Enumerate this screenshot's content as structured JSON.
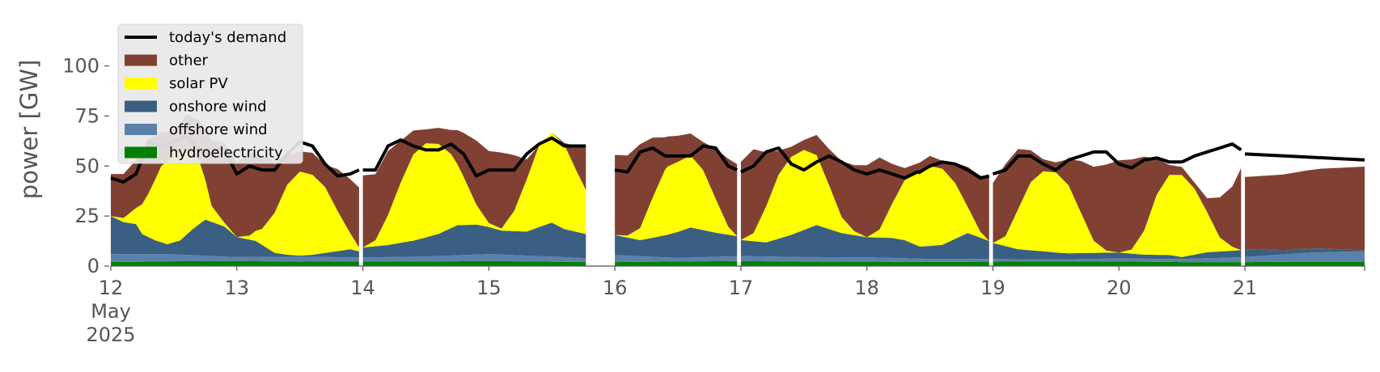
{
  "chart_data": {
    "type": "area",
    "ylabel": "power [GW]",
    "ylim": [
      0,
      120
    ],
    "yticks": [
      0,
      25,
      50,
      75,
      100
    ],
    "xlim": [
      0,
      9.95
    ],
    "x_tick_labels": [
      "12\nMay\n2025",
      "13",
      "14",
      "15",
      "16",
      "17",
      "18",
      "19",
      "20",
      "21"
    ],
    "legend_position": "top-left",
    "grid": false,
    "day_segments": [
      [
        0.0,
        1.97
      ],
      [
        2.0,
        3.77
      ],
      [
        4.0,
        4.42
      ],
      [
        4.42,
        4.97
      ],
      [
        5.0,
        6.42
      ],
      [
        6.42,
        6.97
      ],
      [
        7.0,
        8.5
      ],
      [
        8.5,
        8.97
      ],
      [
        9.0,
        9.95
      ]
    ],
    "series": [
      {
        "name": "hydroelectricity",
        "color": "#008000",
        "x": [
          0,
          0.5,
          1,
          1.5,
          2,
          2.5,
          3,
          3.5,
          3.77,
          4,
          4.5,
          5,
          5.5,
          6,
          6.5,
          7,
          7.5,
          8,
          8.5,
          9,
          9.5,
          9.95
        ],
        "values": [
          2,
          2.4,
          2.5,
          2.2,
          2.3,
          2.3,
          2.5,
          2.2,
          2,
          2,
          2.3,
          2.5,
          2.2,
          2.2,
          2.1,
          2.2,
          2.3,
          2.3,
          2,
          2,
          2.2,
          2.2
        ]
      },
      {
        "name": "offshore wind",
        "color": "#5c81a8",
        "x": [
          0,
          0.5,
          1,
          1.5,
          2,
          2.5,
          3,
          3.5,
          3.77,
          4,
          4.5,
          5,
          5.5,
          6,
          6.5,
          7,
          7.5,
          8,
          8.5,
          9,
          9.5,
          9.95
        ],
        "values": [
          4,
          3.5,
          2,
          2.5,
          2,
          2.5,
          3.5,
          2.5,
          2,
          3.5,
          1.8,
          2.5,
          2.3,
          2.2,
          1.5,
          1.3,
          1,
          1.5,
          1.5,
          2.5,
          4.5,
          5.2
        ]
      },
      {
        "name": "onshore wind",
        "color": "#3a5f82",
        "x": [
          0,
          0.1,
          0.2,
          0.25,
          0.35,
          0.45,
          0.55,
          0.65,
          0.75,
          0.9,
          1.0,
          1.15,
          1.3,
          1.4,
          1.5,
          1.6,
          1.7,
          1.8,
          1.9,
          1.97,
          2.0,
          2.2,
          2.4,
          2.6,
          2.75,
          2.9,
          3.1,
          3.3,
          3.5,
          3.6,
          3.77,
          4.0,
          4.2,
          4.4,
          4.6,
          4.8,
          4.97,
          5.0,
          5.2,
          5.4,
          5.6,
          5.8,
          6.0,
          6.2,
          6.3,
          6.42,
          6.6,
          6.8,
          6.97,
          7.0,
          7.2,
          7.4,
          7.6,
          7.8,
          8.0,
          8.2,
          8.4,
          8.5,
          8.7,
          8.97,
          9.0,
          9.3,
          9.6,
          9.95
        ],
        "values": [
          19,
          16,
          15,
          10,
          7,
          5,
          7,
          13,
          18,
          15,
          10,
          8,
          2,
          1,
          0.5,
          1,
          2,
          3,
          4,
          3,
          5,
          6,
          8,
          11,
          15,
          15,
          12,
          12,
          17,
          14,
          12,
          10,
          8,
          11,
          15,
          12,
          10,
          8,
          7,
          11,
          16,
          12,
          10,
          10,
          9,
          6,
          7,
          13,
          9,
          8,
          5,
          4,
          3,
          3,
          3,
          2,
          2,
          1,
          3,
          3.5,
          4,
          2,
          2,
          0.3
        ]
      },
      {
        "name": "solar PV",
        "color": "#ffff00",
        "x": [
          0,
          0.1,
          0.2,
          0.3,
          0.4,
          0.5,
          0.6,
          0.7,
          0.75,
          0.8,
          0.9,
          1.0,
          1.1,
          1.2,
          1.25,
          1.3,
          1.4,
          1.5,
          1.6,
          1.7,
          1.8,
          1.9,
          1.97,
          2.0,
          2.1,
          2.2,
          2.3,
          2.4,
          2.5,
          2.6,
          2.7,
          2.8,
          2.9,
          3.0,
          3.1,
          3.2,
          3.3,
          3.4,
          3.5,
          3.6,
          3.7,
          3.77,
          4.0,
          4.1,
          4.2,
          4.3,
          4.4,
          4.42,
          4.5,
          4.6,
          4.7,
          4.8,
          4.9,
          4.97,
          5.0,
          5.1,
          5.2,
          5.3,
          5.4,
          5.5,
          5.6,
          5.7,
          5.8,
          5.9,
          6.0,
          6.1,
          6.2,
          6.3,
          6.4,
          6.42,
          6.5,
          6.6,
          6.7,
          6.8,
          6.9,
          6.97,
          7.0,
          7.1,
          7.2,
          7.3,
          7.4,
          7.5,
          7.6,
          7.7,
          7.8,
          7.9,
          8.0,
          8.1,
          8.2,
          8.3,
          8.4,
          8.5,
          8.6,
          8.7,
          8.8,
          8.9,
          8.97,
          9.0,
          9.95
        ],
        "values": [
          0,
          2,
          8,
          22,
          38,
          45,
          43,
          32,
          20,
          8,
          2,
          0,
          2,
          8,
          14,
          20,
          35,
          42,
          40,
          33,
          20,
          8,
          2,
          0,
          3,
          15,
          30,
          43,
          47,
          45,
          37,
          24,
          10,
          2,
          1,
          10,
          26,
          41,
          45,
          42,
          30,
          22,
          0,
          1,
          6,
          20,
          33,
          34,
          35,
          36,
          30,
          17,
          4,
          0,
          0,
          4,
          18,
          32,
          39,
          40,
          35,
          22,
          8,
          2,
          0,
          4,
          17,
          30,
          36,
          36,
          40,
          38,
          28,
          13,
          3,
          0,
          0,
          5,
          20,
          34,
          40,
          40,
          34,
          20,
          6,
          1,
          0,
          2,
          12,
          30,
          40,
          41,
          33,
          20,
          7,
          2,
          0,
          0,
          0
        ]
      },
      {
        "name": "other",
        "color": "#814132",
        "x": [
          0,
          0.1,
          0.2,
          0.3,
          0.4,
          0.5,
          0.6,
          0.7,
          0.75,
          0.8,
          0.9,
          1.0,
          1.1,
          1.2,
          1.25,
          1.3,
          1.4,
          1.5,
          1.6,
          1.7,
          1.8,
          1.9,
          1.97,
          2.0,
          2.1,
          2.2,
          2.3,
          2.4,
          2.5,
          2.6,
          2.7,
          2.8,
          2.9,
          3.0,
          3.1,
          3.2,
          3.3,
          3.4,
          3.5,
          3.6,
          3.7,
          3.77,
          4.0,
          4.1,
          4.2,
          4.3,
          4.4,
          4.42,
          4.5,
          4.6,
          4.7,
          4.8,
          4.9,
          4.97,
          5.0,
          5.1,
          5.2,
          5.3,
          5.4,
          5.5,
          5.6,
          5.7,
          5.8,
          5.9,
          6.0,
          6.1,
          6.2,
          6.3,
          6.4,
          6.42,
          6.5,
          6.6,
          6.7,
          6.8,
          6.9,
          6.97,
          7.0,
          7.1,
          7.2,
          7.3,
          7.4,
          7.5,
          7.6,
          7.7,
          7.8,
          7.9,
          8.0,
          8.1,
          8.2,
          8.3,
          8.4,
          8.5,
          8.6,
          8.7,
          8.8,
          8.9,
          8.97,
          9.0,
          9.95
        ],
        "values": [
          21,
          22,
          24,
          27,
          17,
          12,
          17,
          20,
          25,
          33,
          40,
          37,
          42,
          35,
          32,
          25,
          15,
          10,
          11,
          11,
          21,
          27,
          30,
          36,
          33,
          32,
          21,
          12,
          7,
          8,
          12,
          22,
          32,
          36,
          38,
          28,
          10,
          0,
          0,
          1,
          13,
          22,
          40,
          40,
          42,
          30,
          16,
          15,
          13,
          11,
          14,
          25,
          34,
          36,
          39,
          42,
          27,
          12,
          5,
          5,
          10,
          18,
          28,
          33,
          36,
          36,
          20,
          6,
          5,
          6,
          5,
          4,
          10,
          20,
          28,
          32,
          30,
          36,
          30,
          16,
          6,
          5,
          13,
          26,
          37,
          43,
          46,
          45,
          37,
          18,
          5,
          4,
          3,
          7,
          20,
          30,
          41,
          36,
          42
        ]
      }
    ],
    "demand": {
      "name": "today's demand",
      "color": "#000000",
      "x": [
        0,
        0.1,
        0.2,
        0.3,
        0.4,
        0.5,
        0.6,
        0.7,
        0.75,
        0.8,
        0.9,
        1.0,
        1.1,
        1.2,
        1.25,
        1.3,
        1.4,
        1.5,
        1.6,
        1.7,
        1.8,
        1.9,
        1.97,
        2.0,
        2.1,
        2.2,
        2.3,
        2.4,
        2.5,
        2.6,
        2.7,
        2.8,
        2.9,
        3.0,
        3.1,
        3.2,
        3.3,
        3.4,
        3.5,
        3.6,
        3.7,
        3.77,
        4.0,
        4.1,
        4.2,
        4.3,
        4.4,
        4.42,
        4.5,
        4.6,
        4.7,
        4.8,
        4.9,
        4.97,
        5.0,
        5.1,
        5.2,
        5.3,
        5.4,
        5.5,
        5.6,
        5.7,
        5.8,
        5.9,
        6.0,
        6.1,
        6.2,
        6.3,
        6.4,
        6.42,
        6.5,
        6.6,
        6.7,
        6.8,
        6.9,
        6.97,
        7.0,
        7.1,
        7.2,
        7.3,
        7.4,
        7.5,
        7.6,
        7.7,
        7.8,
        7.9,
        8.0,
        8.1,
        8.2,
        8.3,
        8.4,
        8.5,
        8.6,
        8.7,
        8.8,
        8.9,
        8.97,
        9.0,
        9.95
      ],
      "values": [
        44,
        42,
        46,
        62,
        60,
        62,
        65,
        59,
        58,
        59,
        58,
        46,
        50,
        48,
        48,
        48,
        56,
        62,
        60,
        51,
        45,
        46,
        48,
        48,
        48,
        60,
        63,
        60,
        58,
        58,
        61,
        56,
        45,
        48,
        48,
        48,
        56,
        61,
        64,
        60,
        60,
        60,
        48,
        47,
        57,
        59,
        55,
        55,
        55,
        55,
        60,
        59,
        50,
        48,
        47,
        50,
        57,
        59,
        51,
        48,
        52,
        55,
        52,
        48,
        46,
        48,
        46,
        44,
        47,
        47,
        50,
        52,
        51,
        48,
        44,
        45,
        46,
        48,
        55,
        55,
        51,
        48,
        53,
        55,
        57,
        57,
        51,
        49,
        53,
        54,
        52,
        52,
        55,
        57,
        59,
        61,
        58,
        56,
        53
      ]
    }
  }
}
